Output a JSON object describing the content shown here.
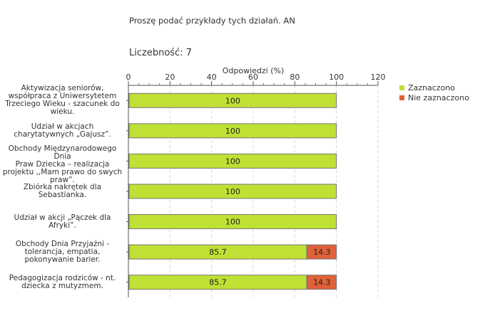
{
  "question": "Proszę podać przykłady tych działań. AN",
  "count": {
    "label": "Liczebność:",
    "value": "7"
  },
  "chart_data": {
    "type": "bar",
    "orientation": "horizontal",
    "stacked": true,
    "title": "",
    "xlabel": "Odpowiedzi (%)",
    "ylabel": "",
    "xlim": [
      0,
      120
    ],
    "xticks": [
      0,
      20,
      40,
      60,
      80,
      100,
      120
    ],
    "grid": true,
    "legend_position": "right",
    "categories": [
      "Aktywizacja seniorów,\nwspółpraca z Uniwersytetem\nTrzeciego Wieku - szacunek do\nwieku.",
      "Udział w akcjach\ncharytatywnych „Gajusz”.",
      "Obchody Międzynarodowego Dnia\nPraw Dziecka – realizacja\nprojektu ,,Mam prawo do swych\npraw”.",
      "Zbiórka nakrętek dla\nSebastianka.",
      "Udział w akcji „Pączek dla\nAfryki”.",
      "Obchody Dnia Przyjaźni -\ntolerancja, empatia,\npokonywanie barier.",
      "Pedagogizacja rodziców - nt.\ndziecka z mutyzmem."
    ],
    "series": [
      {
        "name": "Zaznaczono",
        "color": "#bfe034",
        "values": [
          100,
          100,
          100,
          100,
          100,
          85.7,
          85.7
        ]
      },
      {
        "name": "Nie zaznaczono",
        "color": "#e0613a",
        "values": [
          0,
          0,
          0,
          0,
          0,
          14.3,
          14.3
        ]
      }
    ]
  }
}
